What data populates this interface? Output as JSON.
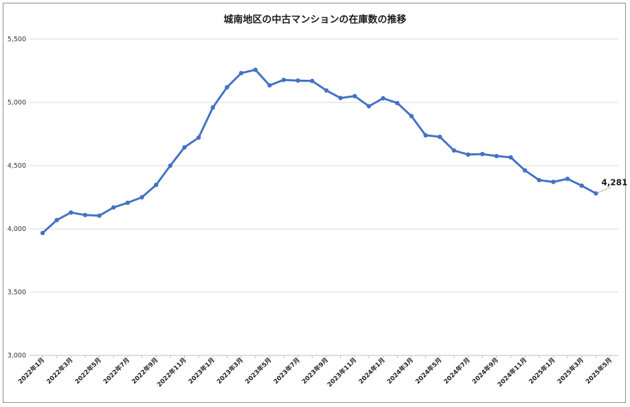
{
  "chart_data": {
    "type": "line",
    "title": "城南地区の中古マンションの在庫数の推移",
    "xlabel": "",
    "ylabel": "",
    "ylim": [
      3000,
      5500
    ],
    "yticks": [
      3000,
      3500,
      4000,
      4500,
      5000,
      5500
    ],
    "ytick_labels": [
      "3,000",
      "3,500",
      "4,000",
      "4,500",
      "5,000",
      "5,500"
    ],
    "grid": "horizontal",
    "legend": "none",
    "line_color": "#4472c4",
    "x": [
      "2022年1月",
      "2022年2月",
      "2022年3月",
      "2022年4月",
      "2022年5月",
      "2022年6月",
      "2022年7月",
      "2022年8月",
      "2022年9月",
      "2022年10月",
      "2022年11月",
      "2022年12月",
      "2023年1月",
      "2023年2月",
      "2023年3月",
      "2023年4月",
      "2023年5月",
      "2023年6月",
      "2023年7月",
      "2023年8月",
      "2023年9月",
      "2023年10月",
      "2023年11月",
      "2023年12月",
      "2024年1月",
      "2024年2月",
      "2024年3月",
      "2024年4月",
      "2024年5月",
      "2024年6月",
      "2024年7月",
      "2024年8月",
      "2024年9月",
      "2024年10月",
      "2024年11月",
      "2024年12月",
      "2025年1月",
      "2025年2月",
      "2025年3月",
      "2025年4月"
    ],
    "xtick_labels": [
      "2022年1月",
      "2022年3月",
      "2022年5月",
      "2022年7月",
      "2022年9月",
      "2022年11月",
      "2023年1月",
      "2023年3月",
      "2023年5月",
      "2023年7月",
      "2023年9月",
      "2023年11月",
      "2024年1月",
      "2024年3月",
      "2024年5月",
      "2024年7月",
      "2024年9月",
      "2024年11月",
      "2025年1月",
      "2025年3月",
      "2025年5月"
    ],
    "values": [
      3968,
      4070,
      4130,
      4110,
      4105,
      4170,
      4207,
      4250,
      4348,
      4500,
      4645,
      4722,
      4960,
      5120,
      5232,
      5258,
      5135,
      5178,
      5173,
      5170,
      5095,
      5035,
      5050,
      4970,
      5033,
      4995,
      4892,
      4740,
      4728,
      4620,
      4588,
      4592,
      4576,
      4566,
      4463,
      4386,
      4372,
      4396,
      4342,
      4281
    ],
    "last_label": "4,281"
  }
}
